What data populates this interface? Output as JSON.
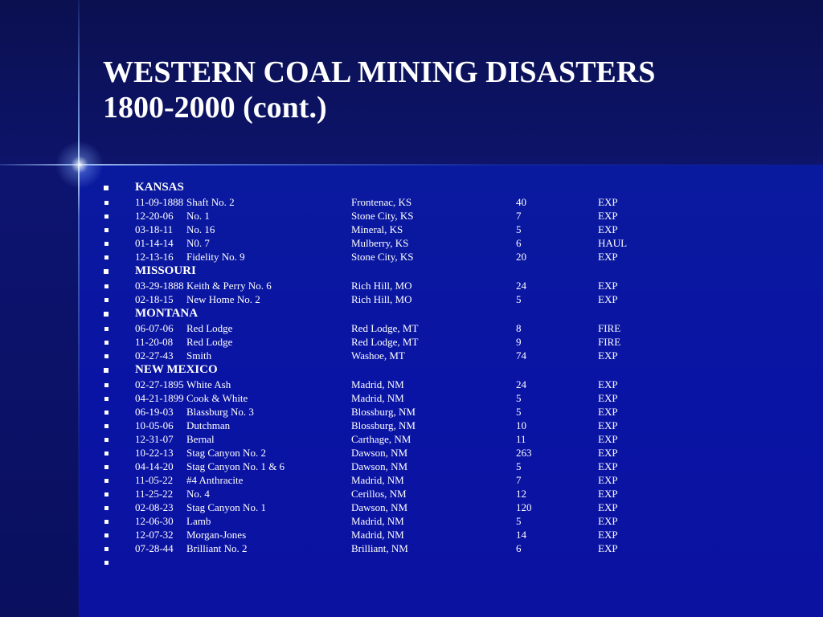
{
  "slide": {
    "title_line1": "WESTERN COAL MINING DISASTERS",
    "title_line2": "1800-2000 (cont.)"
  },
  "rows": [
    {
      "state": "KANSAS"
    },
    {
      "date": "11-09-1888",
      "mine": "Shaft No. 2",
      "location": "Frontenac, KS",
      "deaths": "40",
      "type": "EXP"
    },
    {
      "date": "12-20-06",
      "mine": "No. 1",
      "location": "Stone City, KS",
      "deaths": "7",
      "type": "EXP"
    },
    {
      "date": "03-18-11",
      "mine": "No. 16",
      "location": "Mineral, KS",
      "deaths": "5",
      "type": "EXP"
    },
    {
      "date": "01-14-14",
      "mine": "N0. 7",
      "location": "Mulberry, KS",
      "deaths": "6",
      "type": "HAUL"
    },
    {
      "date": "12-13-16",
      "mine": "Fidelity No. 9",
      "location": "Stone City, KS",
      "deaths": "20",
      "type": "EXP"
    },
    {
      "state": "MISSOURI"
    },
    {
      "date": "03-29-1888",
      "mine": "Keith & Perry No. 6",
      "location": "Rich Hill, MO",
      "deaths": "24",
      "type": "EXP"
    },
    {
      "date": "02-18-15",
      "mine": "New Home No. 2",
      "location": "Rich Hill, MO",
      "deaths": "5",
      "type": "EXP"
    },
    {
      "state": "MONTANA"
    },
    {
      "date": "06-07-06",
      "mine": "Red Lodge",
      "location": "Red Lodge, MT",
      "deaths": "8",
      "type": "FIRE"
    },
    {
      "date": "11-20-08",
      "mine": "Red Lodge",
      "location": "Red Lodge, MT",
      "deaths": "9",
      "type": "FIRE"
    },
    {
      "date": "02-27-43",
      "mine": "Smith",
      "location": "Washoe, MT",
      "deaths": "74",
      "type": "EXP"
    },
    {
      "state": "NEW MEXICO"
    },
    {
      "date": "02-27-1895",
      "mine": "White Ash",
      "location": "Madrid, NM",
      "deaths": "24",
      "type": "EXP"
    },
    {
      "date": "04-21-1899",
      "mine": "Cook & White",
      "location": "Madrid, NM",
      "deaths": "5",
      "type": "EXP"
    },
    {
      "date": "06-19-03",
      "mine": "Blassburg No. 3",
      "location": "Blossburg, NM",
      "deaths": "5",
      "type": "EXP"
    },
    {
      "date": "10-05-06",
      "mine": "Dutchman",
      "location": "Blossburg, NM",
      "deaths": "10",
      "type": "EXP"
    },
    {
      "date": "12-31-07",
      "mine": "Bernal",
      "location": "Carthage, NM",
      "deaths": "11",
      "type": "EXP"
    },
    {
      "date": "10-22-13",
      "mine": "Stag Canyon No. 2",
      "location": "Dawson, NM",
      "deaths": "263",
      "type": "EXP"
    },
    {
      "date": "04-14-20",
      "mine": "Stag Canyon No. 1 & 6",
      "location": "Dawson, NM",
      "deaths": "5",
      "type": "EXP"
    },
    {
      "date": "11-05-22",
      "mine": "#4 Anthracite",
      "location": "Madrid, NM",
      "deaths": "7",
      "type": "EXP"
    },
    {
      "date": "11-25-22",
      "mine": "No. 4",
      "location": "Cerillos, NM",
      "deaths": "12",
      "type": "EXP"
    },
    {
      "date": "02-08-23",
      "mine": "Stag Canyon No. 1",
      "location": "Dawson, NM",
      "deaths": "120",
      "type": "EXP"
    },
    {
      "date": "12-06-30",
      "mine": "Lamb",
      "location": "Madrid, NM",
      "deaths": "5",
      "type": "EXP"
    },
    {
      "date": "12-07-32",
      "mine": "Morgan-Jones",
      "location": "Madrid, NM",
      "deaths": "14",
      "type": "EXP"
    },
    {
      "date": "07-28-44",
      "mine": "Brilliant No. 2",
      "location": "Brilliant, NM",
      "deaths": "6",
      "type": "EXP"
    },
    {
      "empty": ""
    }
  ]
}
